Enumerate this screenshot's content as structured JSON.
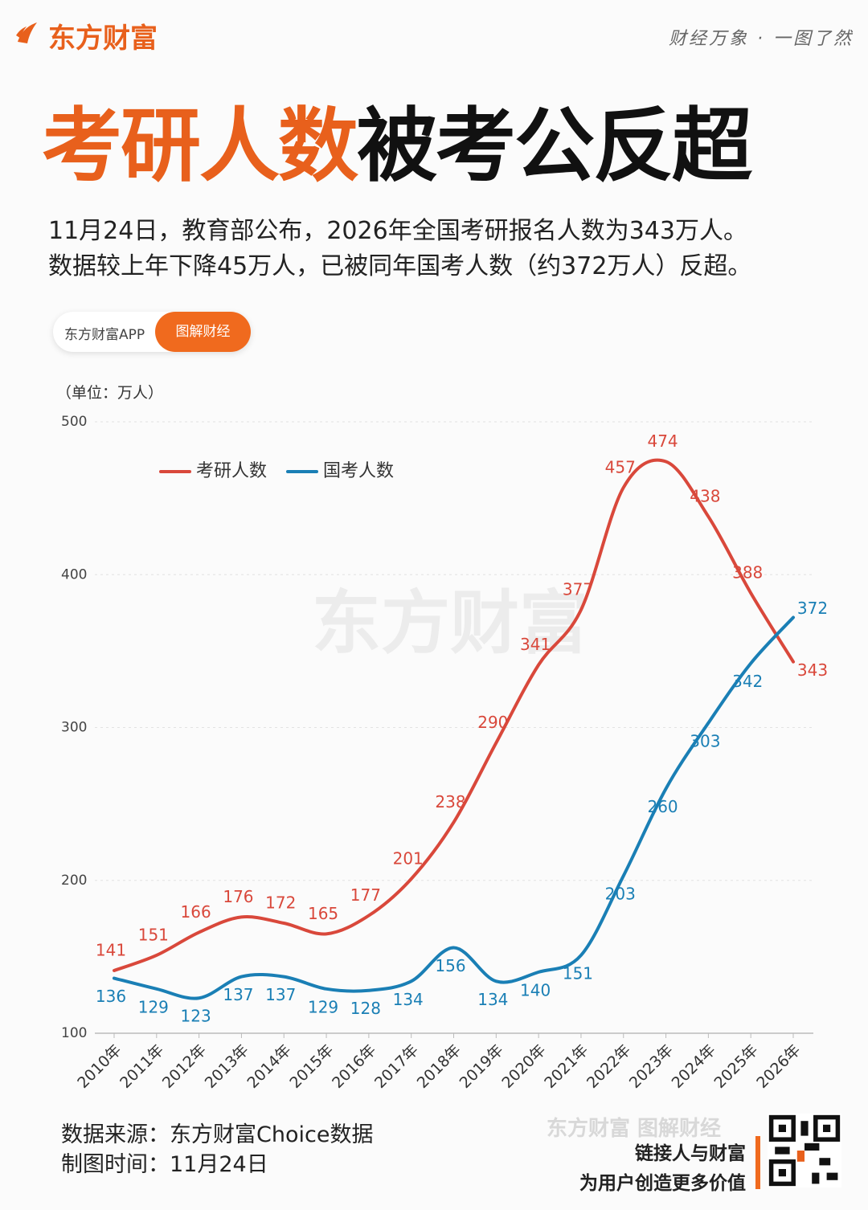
{
  "header": {
    "logo": "东方财富",
    "slogan": "财经万象 · 一图了然",
    "title_highlight": "考研人数",
    "title_rest": "被考公反超",
    "subtitle_lines": [
      "11月24日，教育部公布，2026年全国考研报名人数为343万人。",
      "数据较上年下降45万人，已被同年国考人数（约372万人）反超。"
    ],
    "badge_app": "东方财富APP",
    "badge_button": "图解财经"
  },
  "chart_data": {
    "type": "line",
    "unit_label": "（单位：万人）",
    "watermark": "东方财富",
    "categories": [
      "2010年",
      "2011年",
      "2012年",
      "2013年",
      "2014年",
      "2015年",
      "2016年",
      "2017年",
      "2018年",
      "2019年",
      "2020年",
      "2021年",
      "2022年",
      "2023年",
      "2024年",
      "2025年",
      "2026年"
    ],
    "series": [
      {
        "name": "考研人数",
        "color": "#d9483b",
        "values": [
          141,
          151,
          166,
          176,
          172,
          165,
          177,
          201,
          238,
          290,
          341,
          377,
          457,
          474,
          438,
          388,
          343
        ]
      },
      {
        "name": "国考人数",
        "color": "#1a7fb5",
        "values": [
          136,
          129,
          123,
          137,
          137,
          129,
          128,
          134,
          156,
          134,
          140,
          151,
          203,
          260,
          303,
          342,
          372
        ]
      }
    ],
    "ylim": [
      100,
      500
    ],
    "yticks": [
      100,
      200,
      300,
      400,
      500
    ],
    "grid": true,
    "smooth": true
  },
  "footer": {
    "source": "数据来源：东方财富Choice数据",
    "date": "制图时间：11月24日",
    "brand": "东方财富 图解财经",
    "slogan1": "链接人与财富",
    "slogan2": "为用户创造更多价值"
  }
}
